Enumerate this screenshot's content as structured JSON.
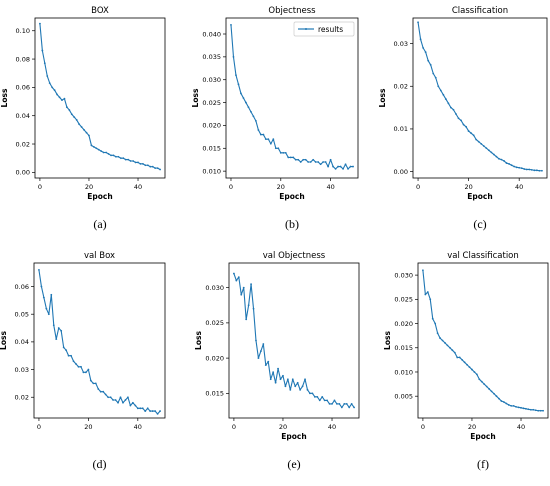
{
  "series_color": "#1f77b4",
  "chart_data": [
    {
      "type": "line",
      "title": "BOX",
      "xlabel": "Epoch",
      "ylabel": "Loss",
      "caption": "(a)",
      "xlim": [
        -2,
        51
      ],
      "ylim": [
        -0.004,
        0.109
      ],
      "xticks": [
        0,
        20,
        40
      ],
      "xtick_labels": [
        "0",
        "20",
        "40"
      ],
      "yticks": [
        0.0,
        0.02,
        0.04,
        0.06,
        0.08,
        0.1
      ],
      "ytick_labels": [
        "0.00",
        "0.02",
        "0.04",
        "0.06",
        "0.08",
        "0.10"
      ],
      "legend": null,
      "x": [
        0,
        1,
        2,
        3,
        4,
        5,
        6,
        7,
        8,
        9,
        10,
        11,
        12,
        13,
        14,
        15,
        16,
        17,
        18,
        19,
        20,
        21,
        22,
        23,
        24,
        25,
        26,
        27,
        28,
        29,
        30,
        31,
        32,
        33,
        34,
        35,
        36,
        37,
        38,
        39,
        40,
        41,
        42,
        43,
        44,
        45,
        46,
        47,
        48,
        49
      ],
      "values": [
        0.105,
        0.086,
        0.077,
        0.068,
        0.063,
        0.06,
        0.058,
        0.055,
        0.053,
        0.051,
        0.052,
        0.046,
        0.044,
        0.041,
        0.039,
        0.037,
        0.034,
        0.032,
        0.03,
        0.028,
        0.026,
        0.019,
        0.018,
        0.017,
        0.016,
        0.015,
        0.014,
        0.014,
        0.013,
        0.012,
        0.012,
        0.011,
        0.011,
        0.01,
        0.01,
        0.009,
        0.009,
        0.008,
        0.008,
        0.007,
        0.007,
        0.006,
        0.006,
        0.005,
        0.005,
        0.004,
        0.004,
        0.003,
        0.003,
        0.002
      ]
    },
    {
      "type": "line",
      "title": "Objectness",
      "xlabel": "Epoch",
      "ylabel": "Loss",
      "caption": "(b)",
      "xlim": [
        -2,
        51
      ],
      "ylim": [
        0.0085,
        0.0435
      ],
      "xticks": [
        0,
        20,
        40
      ],
      "xtick_labels": [
        "0",
        "20",
        "40"
      ],
      "yticks": [
        0.01,
        0.015,
        0.02,
        0.025,
        0.03,
        0.035,
        0.04
      ],
      "ytick_labels": [
        "0.010",
        "0.015",
        "0.020",
        "0.025",
        "0.030",
        "0.035",
        "0.040"
      ],
      "legend": "results",
      "x": [
        0,
        1,
        2,
        3,
        4,
        5,
        6,
        7,
        8,
        9,
        10,
        11,
        12,
        13,
        14,
        15,
        16,
        17,
        18,
        19,
        20,
        21,
        22,
        23,
        24,
        25,
        26,
        27,
        28,
        29,
        30,
        31,
        32,
        33,
        34,
        35,
        36,
        37,
        38,
        39,
        40,
        41,
        42,
        43,
        44,
        45,
        46,
        47,
        48,
        49
      ],
      "values": [
        0.042,
        0.035,
        0.031,
        0.029,
        0.027,
        0.026,
        0.025,
        0.024,
        0.023,
        0.022,
        0.021,
        0.019,
        0.018,
        0.018,
        0.017,
        0.017,
        0.016,
        0.017,
        0.015,
        0.015,
        0.014,
        0.014,
        0.014,
        0.013,
        0.013,
        0.013,
        0.0125,
        0.0125,
        0.012,
        0.0125,
        0.0125,
        0.012,
        0.012,
        0.0125,
        0.012,
        0.012,
        0.0115,
        0.012,
        0.012,
        0.011,
        0.0125,
        0.011,
        0.0105,
        0.011,
        0.011,
        0.0105,
        0.0115,
        0.0105,
        0.011,
        0.011
      ]
    },
    {
      "type": "line",
      "title": "Classification",
      "xlabel": "Epoch",
      "ylabel": "Loss",
      "caption": "(c)",
      "xlim": [
        -2,
        51
      ],
      "ylim": [
        -0.0015,
        0.036
      ],
      "xticks": [
        0,
        20,
        40
      ],
      "xtick_labels": [
        "0",
        "20",
        "40"
      ],
      "yticks": [
        0.0,
        0.01,
        0.02,
        0.03
      ],
      "ytick_labels": [
        "0.00",
        "0.01",
        "0.02",
        "0.03"
      ],
      "legend": null,
      "x": [
        0,
        1,
        2,
        3,
        4,
        5,
        6,
        7,
        8,
        9,
        10,
        11,
        12,
        13,
        14,
        15,
        16,
        17,
        18,
        19,
        20,
        21,
        22,
        23,
        24,
        25,
        26,
        27,
        28,
        29,
        30,
        31,
        32,
        33,
        34,
        35,
        36,
        37,
        38,
        39,
        40,
        41,
        42,
        43,
        44,
        45,
        46,
        47,
        48,
        49
      ],
      "values": [
        0.035,
        0.031,
        0.029,
        0.028,
        0.026,
        0.025,
        0.023,
        0.022,
        0.02,
        0.019,
        0.018,
        0.017,
        0.016,
        0.015,
        0.0145,
        0.0135,
        0.0125,
        0.012,
        0.011,
        0.0105,
        0.0095,
        0.009,
        0.0085,
        0.0075,
        0.007,
        0.0065,
        0.006,
        0.0055,
        0.005,
        0.0045,
        0.004,
        0.0035,
        0.003,
        0.0028,
        0.0025,
        0.002,
        0.0018,
        0.0015,
        0.0012,
        0.001,
        0.0009,
        0.0008,
        0.0006,
        0.0005,
        0.0005,
        0.0004,
        0.0003,
        0.0003,
        0.0002,
        0.0002
      ]
    },
    {
      "type": "line",
      "title": "val Box",
      "xlabel": "",
      "ylabel": "Loss",
      "caption": "(d)",
      "xlim": [
        -2,
        51
      ],
      "ylim": [
        0.0125,
        0.0685
      ],
      "xticks": [
        0,
        20,
        40
      ],
      "xtick_labels": [
        "0",
        "20",
        "40"
      ],
      "yticks": [
        0.02,
        0.03,
        0.04,
        0.05,
        0.06
      ],
      "ytick_labels": [
        "0.02",
        "0.03",
        "0.04",
        "0.05",
        "0.06"
      ],
      "legend": null,
      "x": [
        0,
        1,
        2,
        3,
        4,
        5,
        6,
        7,
        8,
        9,
        10,
        11,
        12,
        13,
        14,
        15,
        16,
        17,
        18,
        19,
        20,
        21,
        22,
        23,
        24,
        25,
        26,
        27,
        28,
        29,
        30,
        31,
        32,
        33,
        34,
        35,
        36,
        37,
        38,
        39,
        40,
        41,
        42,
        43,
        44,
        45,
        46,
        47,
        48,
        49
      ],
      "values": [
        0.066,
        0.06,
        0.056,
        0.052,
        0.05,
        0.057,
        0.046,
        0.041,
        0.045,
        0.044,
        0.038,
        0.037,
        0.035,
        0.035,
        0.033,
        0.032,
        0.031,
        0.031,
        0.029,
        0.029,
        0.03,
        0.026,
        0.025,
        0.025,
        0.023,
        0.022,
        0.022,
        0.021,
        0.02,
        0.02,
        0.019,
        0.019,
        0.018,
        0.02,
        0.018,
        0.019,
        0.02,
        0.017,
        0.018,
        0.017,
        0.016,
        0.016,
        0.016,
        0.015,
        0.016,
        0.015,
        0.015,
        0.015,
        0.014,
        0.015
      ]
    },
    {
      "type": "line",
      "title": "val Objectness",
      "xlabel": "Epoch",
      "ylabel": "Loss",
      "caption": "(e)",
      "xlim": [
        -2,
        51
      ],
      "ylim": [
        0.0115,
        0.0335
      ],
      "xticks": [
        0,
        20,
        40
      ],
      "xtick_labels": [
        "0",
        "20",
        "40"
      ],
      "yticks": [
        0.015,
        0.02,
        0.025,
        0.03
      ],
      "ytick_labels": [
        "0.015",
        "0.020",
        "0.025",
        "0.030"
      ],
      "legend": null,
      "x": [
        0,
        1,
        2,
        3,
        4,
        5,
        6,
        7,
        8,
        9,
        10,
        11,
        12,
        13,
        14,
        15,
        16,
        17,
        18,
        19,
        20,
        21,
        22,
        23,
        24,
        25,
        26,
        27,
        28,
        29,
        30,
        31,
        32,
        33,
        34,
        35,
        36,
        37,
        38,
        39,
        40,
        41,
        42,
        43,
        44,
        45,
        46,
        47,
        48,
        49
      ],
      "values": [
        0.032,
        0.031,
        0.0315,
        0.029,
        0.03,
        0.0255,
        0.0275,
        0.0305,
        0.027,
        0.0225,
        0.02,
        0.021,
        0.022,
        0.019,
        0.0195,
        0.017,
        0.018,
        0.0165,
        0.0185,
        0.017,
        0.0175,
        0.016,
        0.017,
        0.0155,
        0.017,
        0.016,
        0.0165,
        0.0155,
        0.016,
        0.017,
        0.0155,
        0.015,
        0.015,
        0.0145,
        0.0145,
        0.014,
        0.0145,
        0.014,
        0.014,
        0.0135,
        0.0135,
        0.014,
        0.0135,
        0.0135,
        0.013,
        0.0135,
        0.0135,
        0.013,
        0.0135,
        0.013
      ]
    },
    {
      "type": "line",
      "title": "val Classification",
      "xlabel": "Epoch",
      "ylabel": "Loss",
      "caption": "(f)",
      "xlim": [
        -2,
        51
      ],
      "ylim": [
        0.0005,
        0.0325
      ],
      "xticks": [
        0,
        20,
        40
      ],
      "xtick_labels": [
        "0",
        "20",
        "40"
      ],
      "yticks": [
        0.005,
        0.01,
        0.015,
        0.02,
        0.025,
        0.03
      ],
      "ytick_labels": [
        "0.005",
        "0.010",
        "0.015",
        "0.020",
        "0.025",
        "0.030"
      ],
      "legend": null,
      "x": [
        0,
        1,
        2,
        3,
        4,
        5,
        6,
        7,
        8,
        9,
        10,
        11,
        12,
        13,
        14,
        15,
        16,
        17,
        18,
        19,
        20,
        21,
        22,
        23,
        24,
        25,
        26,
        27,
        28,
        29,
        30,
        31,
        32,
        33,
        34,
        35,
        36,
        37,
        38,
        39,
        40,
        41,
        42,
        43,
        44,
        45,
        46,
        47,
        48,
        49
      ],
      "values": [
        0.031,
        0.026,
        0.0265,
        0.025,
        0.021,
        0.02,
        0.018,
        0.017,
        0.0165,
        0.016,
        0.0155,
        0.015,
        0.0145,
        0.014,
        0.013,
        0.013,
        0.0125,
        0.012,
        0.0115,
        0.011,
        0.0105,
        0.01,
        0.0095,
        0.0085,
        0.008,
        0.0075,
        0.007,
        0.0065,
        0.006,
        0.0055,
        0.005,
        0.0045,
        0.004,
        0.0038,
        0.0035,
        0.0032,
        0.003,
        0.003,
        0.0028,
        0.0027,
        0.0026,
        0.0025,
        0.0024,
        0.0023,
        0.0022,
        0.0022,
        0.0021,
        0.002,
        0.002,
        0.002
      ]
    }
  ]
}
